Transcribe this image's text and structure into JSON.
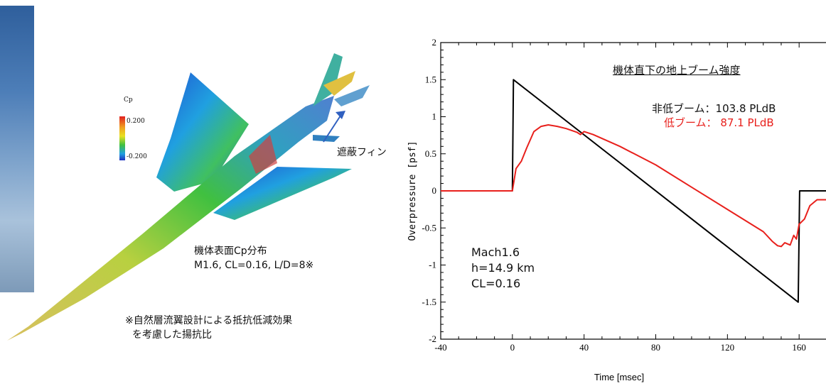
{
  "left_panel": {
    "fin_label": "遮蔽フィン",
    "caption_line1": "機体表面Cp分布",
    "caption_line2": "M1.6, CL=0.16, L/D=8※",
    "note_line1": "※自然層流翼設計による抵抗低減効果",
    "note_line2": "を考慮した揚抗比",
    "cp_legend": {
      "title": "Cp",
      "max": "0.200",
      "min": "-0.200"
    }
  },
  "annotations": {
    "title": "機体直下の地上ブーム強度",
    "nonlow_boom": "非低ブーム：103.8 PLdB",
    "low_boom": "低ブーム：  87.1 PLdB"
  },
  "conditions": {
    "mach": "Mach1.6",
    "altitude": "h=14.9 km",
    "cl": "CL=0.16"
  },
  "colors": {
    "nonlow": "#000000",
    "low": "#e8201c"
  },
  "chart_data": {
    "type": "line",
    "xlabel": "Time [msec]",
    "ylabel": "Overpressure  [psf]",
    "xlim": [
      -40,
      175
    ],
    "ylim": [
      -2,
      2
    ],
    "xticks": [
      -40,
      0,
      40,
      80,
      120,
      160
    ],
    "yticks": [
      -2,
      -1.5,
      -1,
      -0.5,
      0,
      0.5,
      1,
      1.5,
      2
    ],
    "series": [
      {
        "name": "非低ブーム",
        "color": "#000000",
        "x": [
          -40,
          0,
          0.6,
          159.5,
          160.3,
          175
        ],
        "y": [
          0,
          0,
          1.5,
          -1.5,
          0,
          0
        ]
      },
      {
        "name": "低ブーム",
        "color": "#e8201c",
        "x": [
          -40,
          0,
          2,
          5,
          8,
          12,
          16,
          20,
          25,
          30,
          36,
          38,
          40,
          45,
          60,
          80,
          100,
          120,
          140,
          145,
          148,
          150,
          152,
          155,
          157,
          158.5,
          160,
          163,
          166,
          170,
          175
        ],
        "y": [
          0,
          0,
          0.3,
          0.4,
          0.58,
          0.8,
          0.87,
          0.89,
          0.87,
          0.84,
          0.79,
          0.76,
          0.8,
          0.76,
          0.6,
          0.35,
          0.05,
          -0.25,
          -0.55,
          -0.68,
          -0.74,
          -0.75,
          -0.7,
          -0.73,
          -0.6,
          -0.65,
          -0.45,
          -0.38,
          -0.2,
          -0.12,
          -0.12
        ]
      }
    ]
  }
}
